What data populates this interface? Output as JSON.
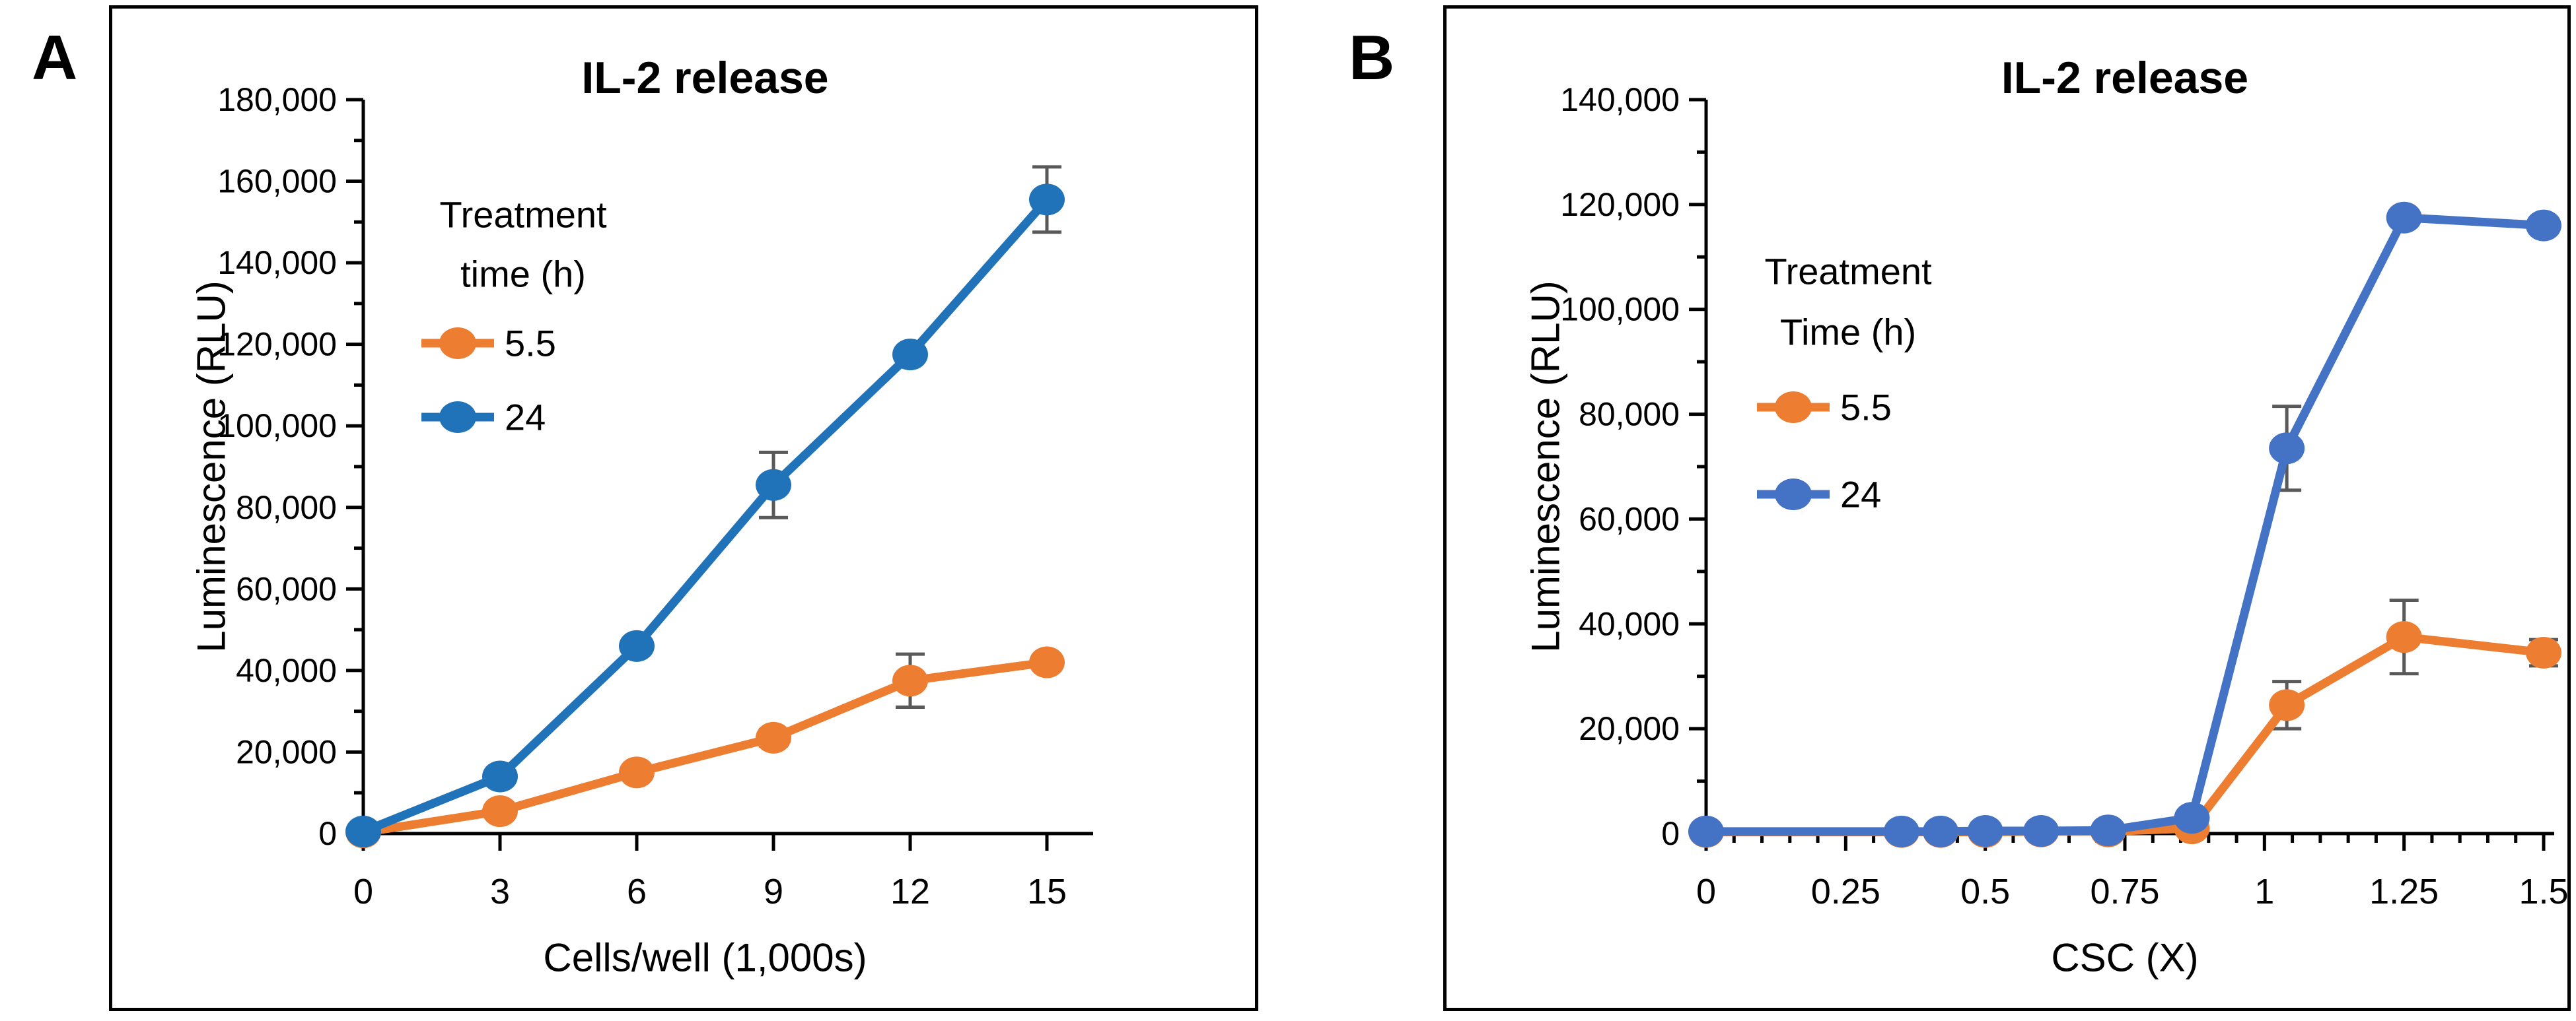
{
  "figure": {
    "panel_a_letter": "A",
    "panel_b_letter": "B"
  },
  "colors": {
    "panel_a_blue": "#2173B9",
    "panel_b_blue": "#4472C4",
    "orange": "#ED7D31",
    "error_bar": "#595959",
    "axis": "#000000",
    "text": "#000000",
    "background": "#FFFFFF"
  },
  "chart_data": [
    {
      "type": "line",
      "panel": "A",
      "title": "IL-2 release",
      "xlabel": "Cells/well (1,000s)",
      "ylabel": "Luminescence (RLU)",
      "ylim": [
        0,
        180000
      ],
      "ytick_step": 20000,
      "yminor_step": 10000,
      "ytick_labels": [
        "0",
        "20,000",
        "40,000",
        "60,000",
        "80,000",
        "100,000",
        "120,000",
        "140,000",
        "160,000",
        "180,000"
      ],
      "xlim": [
        0,
        15
      ],
      "xticks": [
        0,
        3,
        6,
        9,
        12,
        15
      ],
      "xtick_labels": [
        "0",
        "3",
        "6",
        "9",
        "12",
        "15"
      ],
      "xminor_step": null,
      "grid": false,
      "legend": {
        "position": "upper-left-inside",
        "title_lines": [
          "Treatment",
          "time (h)"
        ],
        "entries": [
          "5.5",
          "24"
        ]
      },
      "x": [
        0,
        3,
        6,
        9,
        12,
        15
      ],
      "series": [
        {
          "name": "5.5",
          "color_key": "orange",
          "y": [
            300,
            5500,
            15000,
            23500,
            37500,
            42000
          ],
          "yerr": [
            null,
            null,
            null,
            2000,
            6500,
            null
          ]
        },
        {
          "name": "24",
          "color_key": "panel_a_blue",
          "y": [
            500,
            14000,
            46000,
            85500,
            117500,
            155500
          ],
          "yerr": [
            null,
            null,
            null,
            8000,
            null,
            8000
          ]
        }
      ]
    },
    {
      "type": "line",
      "panel": "B",
      "title": "IL-2 release",
      "xlabel": "CSC (X)",
      "ylabel": "Luminescence (RLU)",
      "ylim": [
        0,
        140000
      ],
      "ytick_step": 20000,
      "yminor_step": 10000,
      "ytick_labels": [
        "0",
        "20,000",
        "40,000",
        "60,000",
        "80,000",
        "100,000",
        "120,000",
        "140,000"
      ],
      "xlim": [
        0,
        1.5
      ],
      "xticks": [
        0,
        0.25,
        0.5,
        0.75,
        1,
        1.25,
        1.5
      ],
      "xtick_labels": [
        "0",
        "0.25",
        "0.5",
        "0.75",
        "1",
        "1.25",
        "1.5"
      ],
      "xminor_step": 0.05,
      "grid": false,
      "legend": {
        "position": "upper-left-inside",
        "title_lines": [
          "Treatment",
          "Time (h)"
        ],
        "entries": [
          "5.5",
          "24"
        ]
      },
      "x": [
        0,
        0.35,
        0.42,
        0.5,
        0.6,
        0.72,
        0.87,
        1.04,
        1.25,
        1.5
      ],
      "series": [
        {
          "name": "5.5",
          "color_key": "orange",
          "y": [
            300,
            300,
            300,
            300,
            400,
            400,
            1000,
            24500,
            37500,
            34500
          ],
          "yerr": [
            null,
            null,
            null,
            null,
            null,
            null,
            null,
            4500,
            7000,
            2500
          ]
        },
        {
          "name": "24",
          "color_key": "panel_b_blue",
          "y": [
            400,
            400,
            400,
            500,
            500,
            600,
            3000,
            73500,
            117500,
            116000
          ],
          "yerr": [
            null,
            null,
            null,
            null,
            null,
            null,
            null,
            8000,
            null,
            null
          ]
        }
      ]
    }
  ]
}
